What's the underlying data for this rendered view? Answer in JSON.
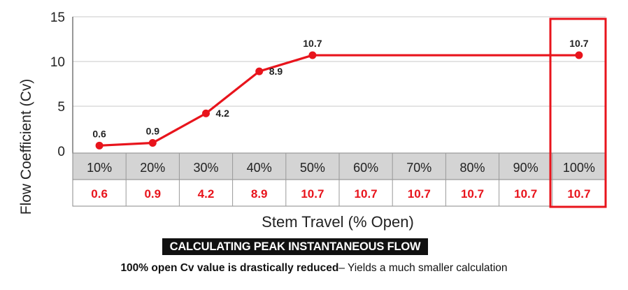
{
  "chart_data": {
    "type": "line",
    "x": [
      "10%",
      "20%",
      "30%",
      "40%",
      "50%",
      "60%",
      "70%",
      "80%",
      "90%",
      "100%"
    ],
    "values": [
      0.6,
      0.9,
      4.2,
      8.9,
      10.7,
      10.7,
      10.7,
      10.7,
      10.7,
      10.7
    ],
    "point_labels": [
      "0.6",
      "0.9",
      "4.2",
      "8.9",
      "10.7",
      "",
      "",
      "",
      "",
      "10.7"
    ],
    "table_values": [
      "0.6",
      "0.9",
      "4.2",
      "8.9",
      "10.7",
      "10.7",
      "10.7",
      "10.7",
      "10.7",
      "10.7"
    ],
    "yticks": [
      "15",
      "10",
      "5",
      "0"
    ],
    "ylim": [
      0,
      15
    ],
    "xlabel": "Stem Travel (% Open)",
    "ylabel": "Flow Coefficient (Cv)",
    "highlight": "100%",
    "colors": {
      "line": "#e8141c",
      "highlight": "#e8141c",
      "header_bg": "#d4d4d4",
      "grid": "#c8c8c8"
    }
  },
  "caption": "CALCULATING PEAK INSTANTANEOUS FLOW",
  "footnote": {
    "bold": "100% open Cv value is drastically reduced",
    "rest": "–  Yields a much smaller calculation"
  }
}
